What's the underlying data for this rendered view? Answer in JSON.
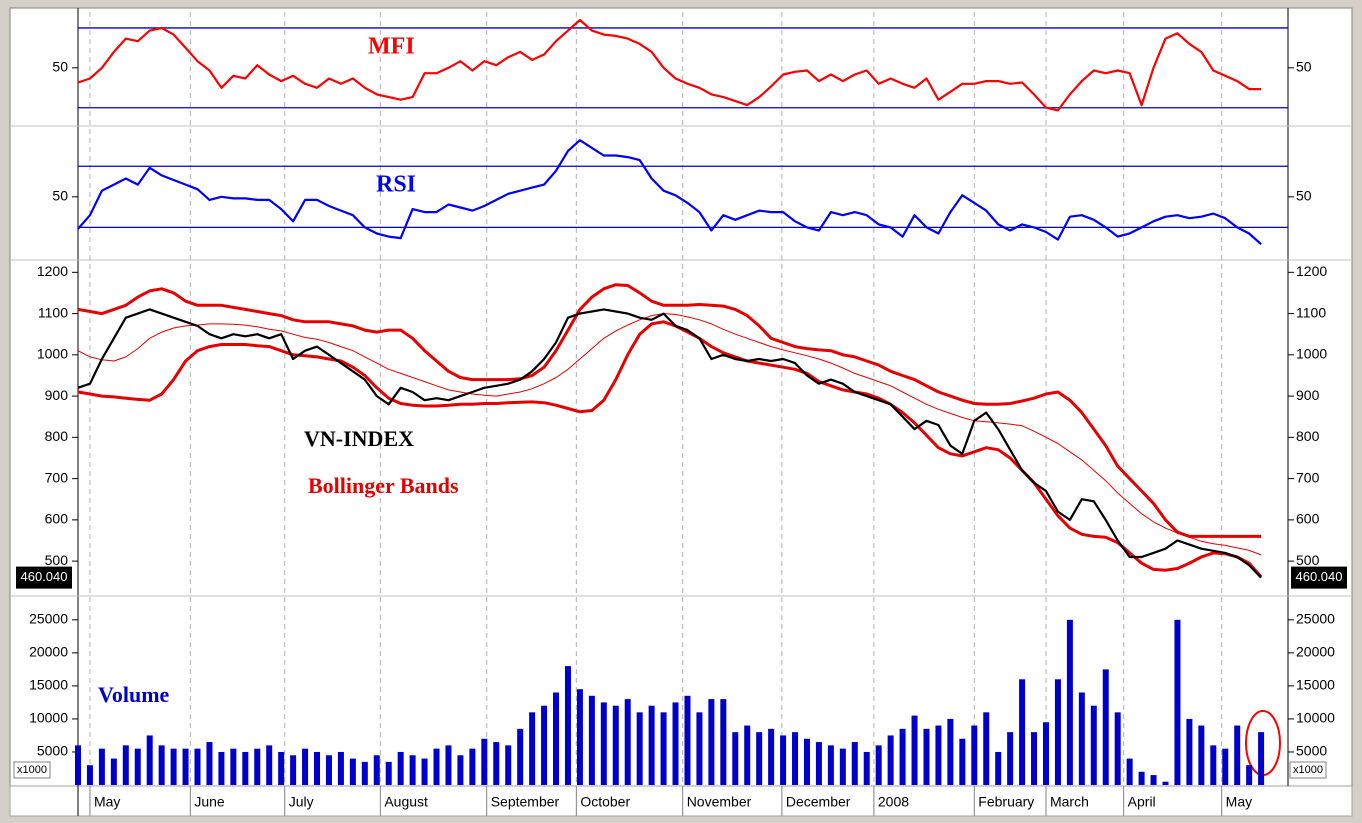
{
  "chart_data": [
    {
      "type": "line",
      "ylim": [
        7,
        92
      ],
      "yticks": [
        50
      ],
      "levels": [
        20,
        80
      ],
      "xlim": [
        0,
        101
      ],
      "series": [
        {
          "name": "MFI",
          "color": "#ff0000",
          "values": [
            39,
            42,
            50,
            62,
            72,
            70,
            78,
            80,
            75,
            65,
            55,
            48,
            35,
            44,
            42,
            52,
            45,
            40,
            44,
            38,
            35,
            42,
            38,
            42,
            35,
            30,
            28,
            26,
            28,
            46,
            46,
            50,
            55,
            48,
            55,
            52,
            58,
            62,
            56,
            60,
            70,
            78,
            86,
            78,
            75,
            74,
            72,
            68,
            62,
            50,
            42,
            38,
            35,
            30,
            28,
            25,
            22,
            28,
            36,
            45,
            47,
            48,
            40,
            45,
            40,
            45,
            48,
            38,
            42,
            38,
            35,
            42,
            26,
            32,
            38,
            38,
            40,
            40,
            38,
            39,
            30,
            20,
            18,
            30,
            40,
            48,
            46,
            48,
            46,
            22,
            50,
            72,
            76,
            68,
            62,
            48,
            44,
            40,
            34,
            34
          ]
        }
      ]
    },
    {
      "type": "line",
      "ylim": [
        10,
        95
      ],
      "yticks": [
        50
      ],
      "levels": [
        30,
        70
      ],
      "xlim": [
        0,
        101
      ],
      "series": [
        {
          "name": "RSI",
          "color": "#0000ff",
          "values": [
            29,
            38,
            54,
            58,
            62,
            58,
            69,
            64,
            61,
            58,
            55,
            48,
            50,
            49,
            49,
            48,
            48,
            42,
            34,
            48,
            48,
            44,
            41,
            38,
            30,
            26,
            24,
            23,
            42,
            40,
            40,
            45,
            43,
            41,
            44,
            48,
            52,
            54,
            56,
            58,
            67,
            80,
            87,
            82,
            77,
            77,
            76,
            74,
            62,
            54,
            51,
            46,
            40,
            28,
            38,
            35,
            38,
            41,
            40,
            40,
            34,
            30,
            28,
            40,
            38,
            40,
            38,
            32,
            30,
            24,
            38,
            30,
            26,
            40,
            51,
            46,
            41,
            32,
            28,
            32,
            30,
            27,
            22,
            37,
            38,
            35,
            30,
            24,
            26,
            30,
            34,
            37,
            38,
            36,
            37,
            39,
            36,
            30,
            26,
            19
          ]
        }
      ]
    },
    {
      "type": "line",
      "ylim": [
        430,
        1225
      ],
      "yticks": [
        500,
        600,
        700,
        800,
        900,
        1000,
        1100,
        1200
      ],
      "xlim": [
        0,
        101
      ],
      "series": [
        {
          "name": "VN-INDEX",
          "color": "#000000",
          "values": [
            920,
            930,
            990,
            1040,
            1090,
            1100,
            1110,
            1100,
            1090,
            1080,
            1070,
            1050,
            1040,
            1050,
            1045,
            1050,
            1040,
            1050,
            990,
            1010,
            1020,
            1000,
            980,
            960,
            940,
            900,
            880,
            920,
            910,
            890,
            895,
            890,
            900,
            910,
            920,
            925,
            930,
            940,
            960,
            990,
            1030,
            1090,
            1100,
            1105,
            1110,
            1105,
            1100,
            1090,
            1085,
            1100,
            1070,
            1060,
            1040,
            990,
            1000,
            990,
            985,
            990,
            985,
            990,
            980,
            950,
            930,
            940,
            930,
            910,
            900,
            890,
            880,
            850,
            820,
            840,
            830,
            780,
            760,
            840,
            860,
            820,
            770,
            720,
            690,
            670,
            620,
            600,
            650,
            645,
            600,
            550,
            510,
            510,
            520,
            530,
            550,
            540,
            530,
            525,
            520,
            510,
            490,
            460.04
          ]
        }
      ],
      "bands": {
        "name": "Bollinger Bands",
        "color": "#e60000",
        "upper": [
          1110,
          1105,
          1100,
          1110,
          1120,
          1140,
          1155,
          1160,
          1150,
          1130,
          1120,
          1120,
          1120,
          1115,
          1110,
          1105,
          1100,
          1095,
          1085,
          1080,
          1080,
          1080,
          1075,
          1070,
          1060,
          1055,
          1060,
          1060,
          1040,
          1010,
          985,
          960,
          945,
          940,
          940,
          940,
          940,
          942,
          950,
          970,
          1010,
          1060,
          1110,
          1140,
          1160,
          1170,
          1168,
          1150,
          1130,
          1120,
          1120,
          1120,
          1122,
          1120,
          1118,
          1110,
          1095,
          1070,
          1040,
          1030,
          1020,
          1015,
          1012,
          1010,
          1000,
          995,
          985,
          975,
          960,
          950,
          940,
          925,
          910,
          900,
          890,
          882,
          880,
          880,
          882,
          888,
          895,
          905,
          910,
          890,
          860,
          820,
          780,
          730,
          700,
          670,
          640,
          600,
          570,
          560,
          560,
          560,
          560,
          560,
          560,
          560
        ],
        "middle": [
          1010,
          995,
          988,
          985,
          995,
          1015,
          1040,
          1055,
          1065,
          1070,
          1072,
          1075,
          1075,
          1074,
          1072,
          1068,
          1062,
          1058,
          1050,
          1042,
          1038,
          1030,
          1020,
          1010,
          995,
          980,
          965,
          955,
          945,
          935,
          925,
          915,
          910,
          905,
          902,
          900,
          905,
          910,
          918,
          930,
          945,
          965,
          990,
          1015,
          1040,
          1058,
          1072,
          1085,
          1095,
          1100,
          1098,
          1092,
          1085,
          1075,
          1062,
          1050,
          1040,
          1030,
          1020,
          1012,
          1005,
          998,
          990,
          980,
          968,
          955,
          945,
          935,
          925,
          910,
          895,
          880,
          868,
          858,
          848,
          840,
          838,
          835,
          832,
          828,
          815,
          800,
          785,
          765,
          745,
          720,
          695,
          665,
          640,
          615,
          595,
          580,
          568,
          558,
          548,
          542,
          538,
          532,
          526,
          515
        ],
        "lower": [
          910,
          905,
          900,
          898,
          895,
          892,
          890,
          905,
          940,
          985,
          1010,
          1020,
          1025,
          1025,
          1025,
          1022,
          1020,
          1010,
          1000,
          998,
          995,
          990,
          985,
          970,
          950,
          920,
          895,
          882,
          878,
          876,
          876,
          878,
          880,
          880,
          882,
          882,
          884,
          885,
          886,
          884,
          878,
          870,
          862,
          865,
          890,
          940,
          1000,
          1050,
          1075,
          1080,
          1070,
          1055,
          1040,
          1020,
          1005,
          995,
          985,
          980,
          975,
          970,
          965,
          955,
          935,
          925,
          915,
          910,
          905,
          895,
          880,
          860,
          835,
          805,
          775,
          760,
          755,
          765,
          775,
          770,
          750,
          720,
          690,
          650,
          610,
          580,
          565,
          560,
          558,
          545,
          520,
          495,
          480,
          478,
          482,
          495,
          510,
          520,
          518,
          510,
          495,
          462
        ]
      },
      "last_label": {
        "value": 460.04,
        "label": "460.040"
      }
    },
    {
      "type": "bar",
      "ylim": [
        0,
        28000
      ],
      "yticks": [
        5000,
        10000,
        15000,
        20000,
        25000
      ],
      "unit_label": "x1000",
      "xlim": [
        0,
        101
      ],
      "xticks": [
        {
          "value": 1,
          "label": "May"
        },
        {
          "value": 9.4,
          "label": "June"
        },
        {
          "value": 17.3,
          "label": "July"
        },
        {
          "value": 25.3,
          "label": "August"
        },
        {
          "value": 34.2,
          "label": "September"
        },
        {
          "value": 41.7,
          "label": "October"
        },
        {
          "value": 50.6,
          "label": "November"
        },
        {
          "value": 58.9,
          "label": "December"
        },
        {
          "value": 66.6,
          "label": "2008"
        },
        {
          "value": 75,
          "label": "February"
        },
        {
          "value": 81,
          "label": "March"
        },
        {
          "value": 87.5,
          "label": "April"
        },
        {
          "value": 95.7,
          "label": "May"
        }
      ],
      "series": [
        {
          "name": "Volume",
          "color": "#0000cc",
          "values": [
            6000,
            3000,
            5500,
            4000,
            6000,
            5500,
            7500,
            6000,
            5500,
            5500,
            5500,
            6500,
            5000,
            5500,
            5000,
            5500,
            6000,
            5000,
            4500,
            5500,
            5000,
            4500,
            5000,
            4000,
            3500,
            4500,
            3500,
            5000,
            4500,
            4000,
            5500,
            6000,
            4500,
            5500,
            7000,
            6500,
            6000,
            8500,
            11000,
            12000,
            14000,
            18000,
            14500,
            13500,
            12500,
            12000,
            13000,
            11000,
            12000,
            11000,
            12500,
            13500,
            11000,
            13000,
            13000,
            8000,
            9000,
            8000,
            8500,
            7500,
            8000,
            7000,
            6500,
            6000,
            5500,
            6500,
            5000,
            6000,
            7500,
            8500,
            10500,
            8500,
            9000,
            10000,
            7000,
            9000,
            11000,
            5000,
            8000,
            16000,
            8000,
            9500,
            16000,
            25000,
            14000,
            12000,
            17500,
            11000,
            4000,
            2000,
            1500,
            500,
            25000,
            10000,
            9000,
            6000,
            5500,
            9000,
            3000,
            8000
          ]
        }
      ]
    }
  ]
}
